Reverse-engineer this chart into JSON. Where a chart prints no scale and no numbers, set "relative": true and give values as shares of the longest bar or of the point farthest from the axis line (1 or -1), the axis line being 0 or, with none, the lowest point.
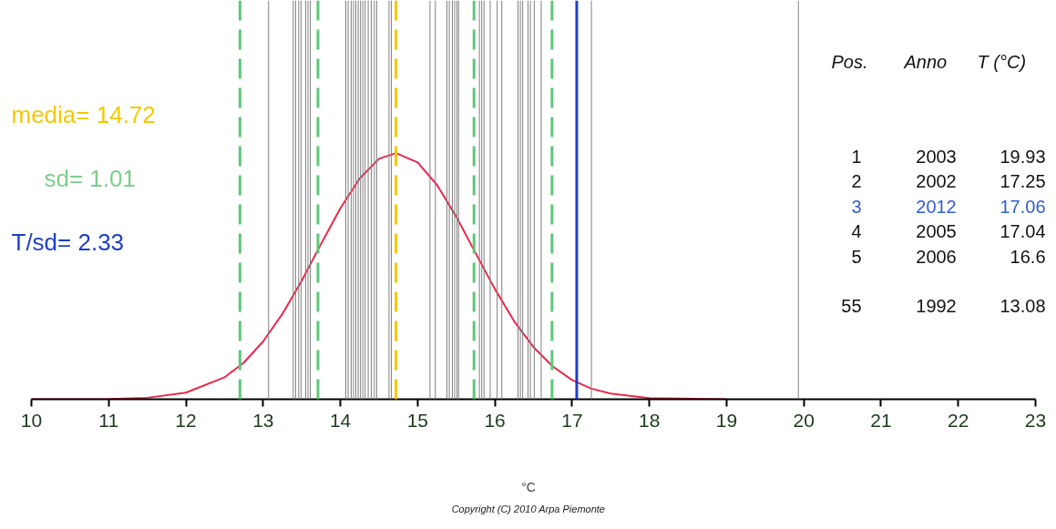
{
  "chart_data": {
    "type": "line",
    "relative": true,
    "xlabel": "°C",
    "xlim": [
      10,
      23
    ],
    "xticks": [
      10,
      11,
      12,
      13,
      14,
      15,
      16,
      17,
      18,
      19,
      20,
      21,
      22,
      23
    ],
    "grid": false,
    "tick_labels": "x",
    "series": [
      {
        "color": "#e8284a",
        "x": [
          10,
          11,
          11.5,
          12,
          12.5,
          12.75,
          13,
          13.25,
          13.5,
          13.75,
          14,
          14.25,
          14.5,
          14.72,
          15,
          15.25,
          15.5,
          15.75,
          16,
          16.25,
          16.5,
          16.75,
          17,
          17.25,
          17.5,
          18,
          19
        ],
        "values": [
          0,
          0.001,
          0.006,
          0.027,
          0.089,
          0.149,
          0.235,
          0.347,
          0.482,
          0.631,
          0.776,
          0.897,
          0.977,
          1,
          0.962,
          0.871,
          0.742,
          0.594,
          0.448,
          0.317,
          0.212,
          0.133,
          0.078,
          0.043,
          0.023,
          0.005,
          0
        ]
      }
    ],
    "ref_lines": [
      {
        "axis": "x",
        "value": 13.07,
        "color": "#808080"
      },
      {
        "axis": "x",
        "value": 13.39,
        "color": "#808080"
      },
      {
        "axis": "x",
        "value": 13.42,
        "color": "#808080"
      },
      {
        "axis": "x",
        "value": 13.46,
        "color": "#808080"
      },
      {
        "axis": "x",
        "value": 13.49,
        "color": "#808080"
      },
      {
        "axis": "x",
        "value": 13.55,
        "color": "#808080"
      },
      {
        "axis": "x",
        "value": 13.58,
        "color": "#808080"
      },
      {
        "axis": "x",
        "value": 13.61,
        "color": "#808080"
      },
      {
        "axis": "x",
        "value": 14.07,
        "color": "#808080"
      },
      {
        "axis": "x",
        "value": 14.1,
        "color": "#808080"
      },
      {
        "axis": "x",
        "value": 14.14,
        "color": "#808080"
      },
      {
        "axis": "x",
        "value": 14.17,
        "color": "#808080"
      },
      {
        "axis": "x",
        "value": 14.2,
        "color": "#808080"
      },
      {
        "axis": "x",
        "value": 14.23,
        "color": "#808080"
      },
      {
        "axis": "x",
        "value": 14.26,
        "color": "#808080"
      },
      {
        "axis": "x",
        "value": 14.29,
        "color": "#808080"
      },
      {
        "axis": "x",
        "value": 14.32,
        "color": "#808080"
      },
      {
        "axis": "x",
        "value": 14.36,
        "color": "#808080"
      },
      {
        "axis": "x",
        "value": 14.4,
        "color": "#808080"
      },
      {
        "axis": "x",
        "value": 14.44,
        "color": "#808080"
      },
      {
        "axis": "x",
        "value": 14.47,
        "color": "#808080"
      },
      {
        "axis": "x",
        "value": 14.63,
        "color": "#808080"
      },
      {
        "axis": "x",
        "value": 14.66,
        "color": "#808080"
      },
      {
        "axis": "x",
        "value": 15.16,
        "color": "#808080"
      },
      {
        "axis": "x",
        "value": 15.23,
        "color": "#808080"
      },
      {
        "axis": "x",
        "value": 15.38,
        "color": "#808080"
      },
      {
        "axis": "x",
        "value": 15.41,
        "color": "#808080"
      },
      {
        "axis": "x",
        "value": 15.45,
        "color": "#808080"
      },
      {
        "axis": "x",
        "value": 15.48,
        "color": "#808080"
      },
      {
        "axis": "x",
        "value": 15.51,
        "color": "#808080"
      },
      {
        "axis": "x",
        "value": 15.53,
        "color": "#808080"
      },
      {
        "axis": "x",
        "value": 15.8,
        "color": "#808080"
      },
      {
        "axis": "x",
        "value": 15.83,
        "color": "#808080"
      },
      {
        "axis": "x",
        "value": 15.86,
        "color": "#808080"
      },
      {
        "axis": "x",
        "value": 15.94,
        "color": "#808080"
      },
      {
        "axis": "x",
        "value": 16.03,
        "color": "#808080"
      },
      {
        "axis": "x",
        "value": 16.09,
        "color": "#808080"
      },
      {
        "axis": "x",
        "value": 16.3,
        "color": "#808080"
      },
      {
        "axis": "x",
        "value": 16.33,
        "color": "#808080"
      },
      {
        "axis": "x",
        "value": 16.36,
        "color": "#808080"
      },
      {
        "axis": "x",
        "value": 16.43,
        "color": "#808080"
      },
      {
        "axis": "x",
        "value": 16.46,
        "color": "#808080"
      },
      {
        "axis": "x",
        "value": 16.51,
        "color": "#808080"
      },
      {
        "axis": "x",
        "value": 16.6,
        "color": "#808080"
      },
      {
        "axis": "x",
        "value": 17.25,
        "color": "#808080"
      },
      {
        "axis": "x",
        "value": 19.93,
        "color": "#808080"
      },
      {
        "axis": "x",
        "value": 12.7,
        "color": "#5cc878",
        "line_style": "dashed"
      },
      {
        "axis": "x",
        "value": 13.71,
        "color": "#5cc878",
        "line_style": "dashed"
      },
      {
        "axis": "x",
        "value": 15.73,
        "color": "#5cc878",
        "line_style": "dashed"
      },
      {
        "axis": "x",
        "value": 16.74,
        "color": "#5cc878",
        "line_style": "dashed"
      },
      {
        "axis": "x",
        "value": 14.72,
        "color": "#f5c800",
        "line_style": "dashed"
      },
      {
        "axis": "x",
        "value": 17.06,
        "color": "#1e3fc8",
        "line_style": "solid"
      }
    ],
    "annotations": [
      "media= 14.72",
      "sd= 1.01",
      "T/sd= 2.33",
      "Pos.",
      "Anno",
      "T (°C)",
      "1",
      "2003",
      "19.93",
      "2",
      "2002",
      "17.25",
      "3",
      "2012",
      "17.06",
      "4",
      "2005",
      "17.04",
      "5",
      "2006",
      "16.6",
      "55",
      "1992",
      "13.08",
      "Copyright (C) 2010 Arpa Piemonte"
    ]
  }
}
